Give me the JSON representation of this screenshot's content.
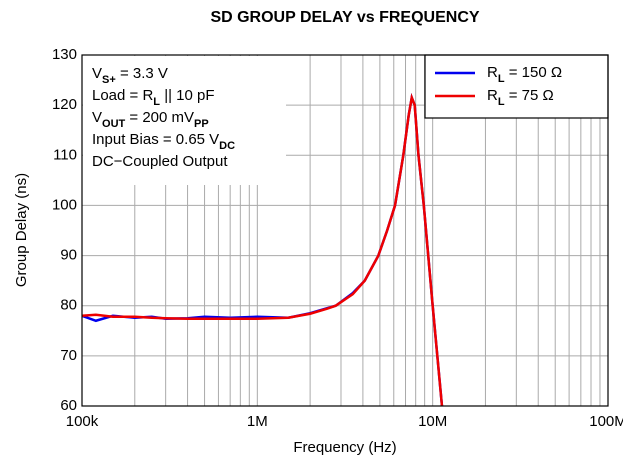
{
  "chart_data": {
    "type": "line",
    "title": "SD GROUP DELAY vs FREQUENCY",
    "xlabel": "Frequency (Hz)",
    "ylabel": "Group Delay (ns)",
    "xscale": "log",
    "grid": true,
    "legend": "upper right",
    "xlim": [
      100000,
      100000000
    ],
    "ylim": [
      60,
      130
    ],
    "xticks": [
      {
        "value": 100000,
        "label": "100k"
      },
      {
        "value": 1000000,
        "label": "1M"
      },
      {
        "value": 10000000,
        "label": "10M"
      },
      {
        "value": 100000000,
        "label": "100M"
      }
    ],
    "yticks": [
      60,
      70,
      80,
      90,
      100,
      110,
      120,
      130
    ],
    "annotation": [
      [
        {
          "text": "V"
        },
        {
          "text": "S+",
          "sub": true
        },
        {
          "text": " = 3.3 V"
        }
      ],
      [
        {
          "text": "Load = R"
        },
        {
          "text": "L",
          "sub": true
        },
        {
          "text": " || 10 pF"
        }
      ],
      [
        {
          "text": "V"
        },
        {
          "text": "OUT",
          "sub": true
        },
        {
          "text": " = 200 mV"
        },
        {
          "text": "PP",
          "sub": true
        }
      ],
      [
        {
          "text": "Input Bias = 0.65 V"
        },
        {
          "text": "DC",
          "sub": true
        }
      ],
      [
        {
          "text": "DC−Coupled Output"
        }
      ]
    ],
    "x": [
      100000,
      120000,
      150000,
      200000,
      250000,
      300000,
      400000,
      500000,
      700000,
      1000000,
      1500000,
      2000000,
      2500000,
      2800000,
      3500000,
      4100000,
      4900000,
      5500000,
      6100000,
      6800000,
      7300000,
      7600000,
      7900000,
      8300000,
      8900000,
      10000000,
      11300000
    ],
    "series": [
      {
        "name": [
          {
            "text": "R"
          },
          {
            "text": "L",
            "sub": true
          },
          {
            "text": " = 150 Ω"
          }
        ],
        "color": "#0000ee",
        "values": [
          78,
          77,
          78,
          77.6,
          77.8,
          77.4,
          77.5,
          77.8,
          77.6,
          77.8,
          77.6,
          78.5,
          79.5,
          80,
          82.5,
          85,
          90,
          95,
          100,
          110,
          118,
          121.5,
          120,
          110,
          100,
          80,
          60
        ]
      },
      {
        "name": [
          {
            "text": "R"
          },
          {
            "text": "L",
            "sub": true
          },
          {
            "text": " = 75 Ω"
          }
        ],
        "color": "#ee0000",
        "values": [
          78,
          78.2,
          77.8,
          77.8,
          77.6,
          77.5,
          77.4,
          77.4,
          77.4,
          77.4,
          77.6,
          78.4,
          79.4,
          80,
          82.3,
          85,
          90,
          95,
          100,
          110,
          118,
          121.5,
          120,
          110,
          100,
          80,
          60
        ]
      }
    ]
  }
}
